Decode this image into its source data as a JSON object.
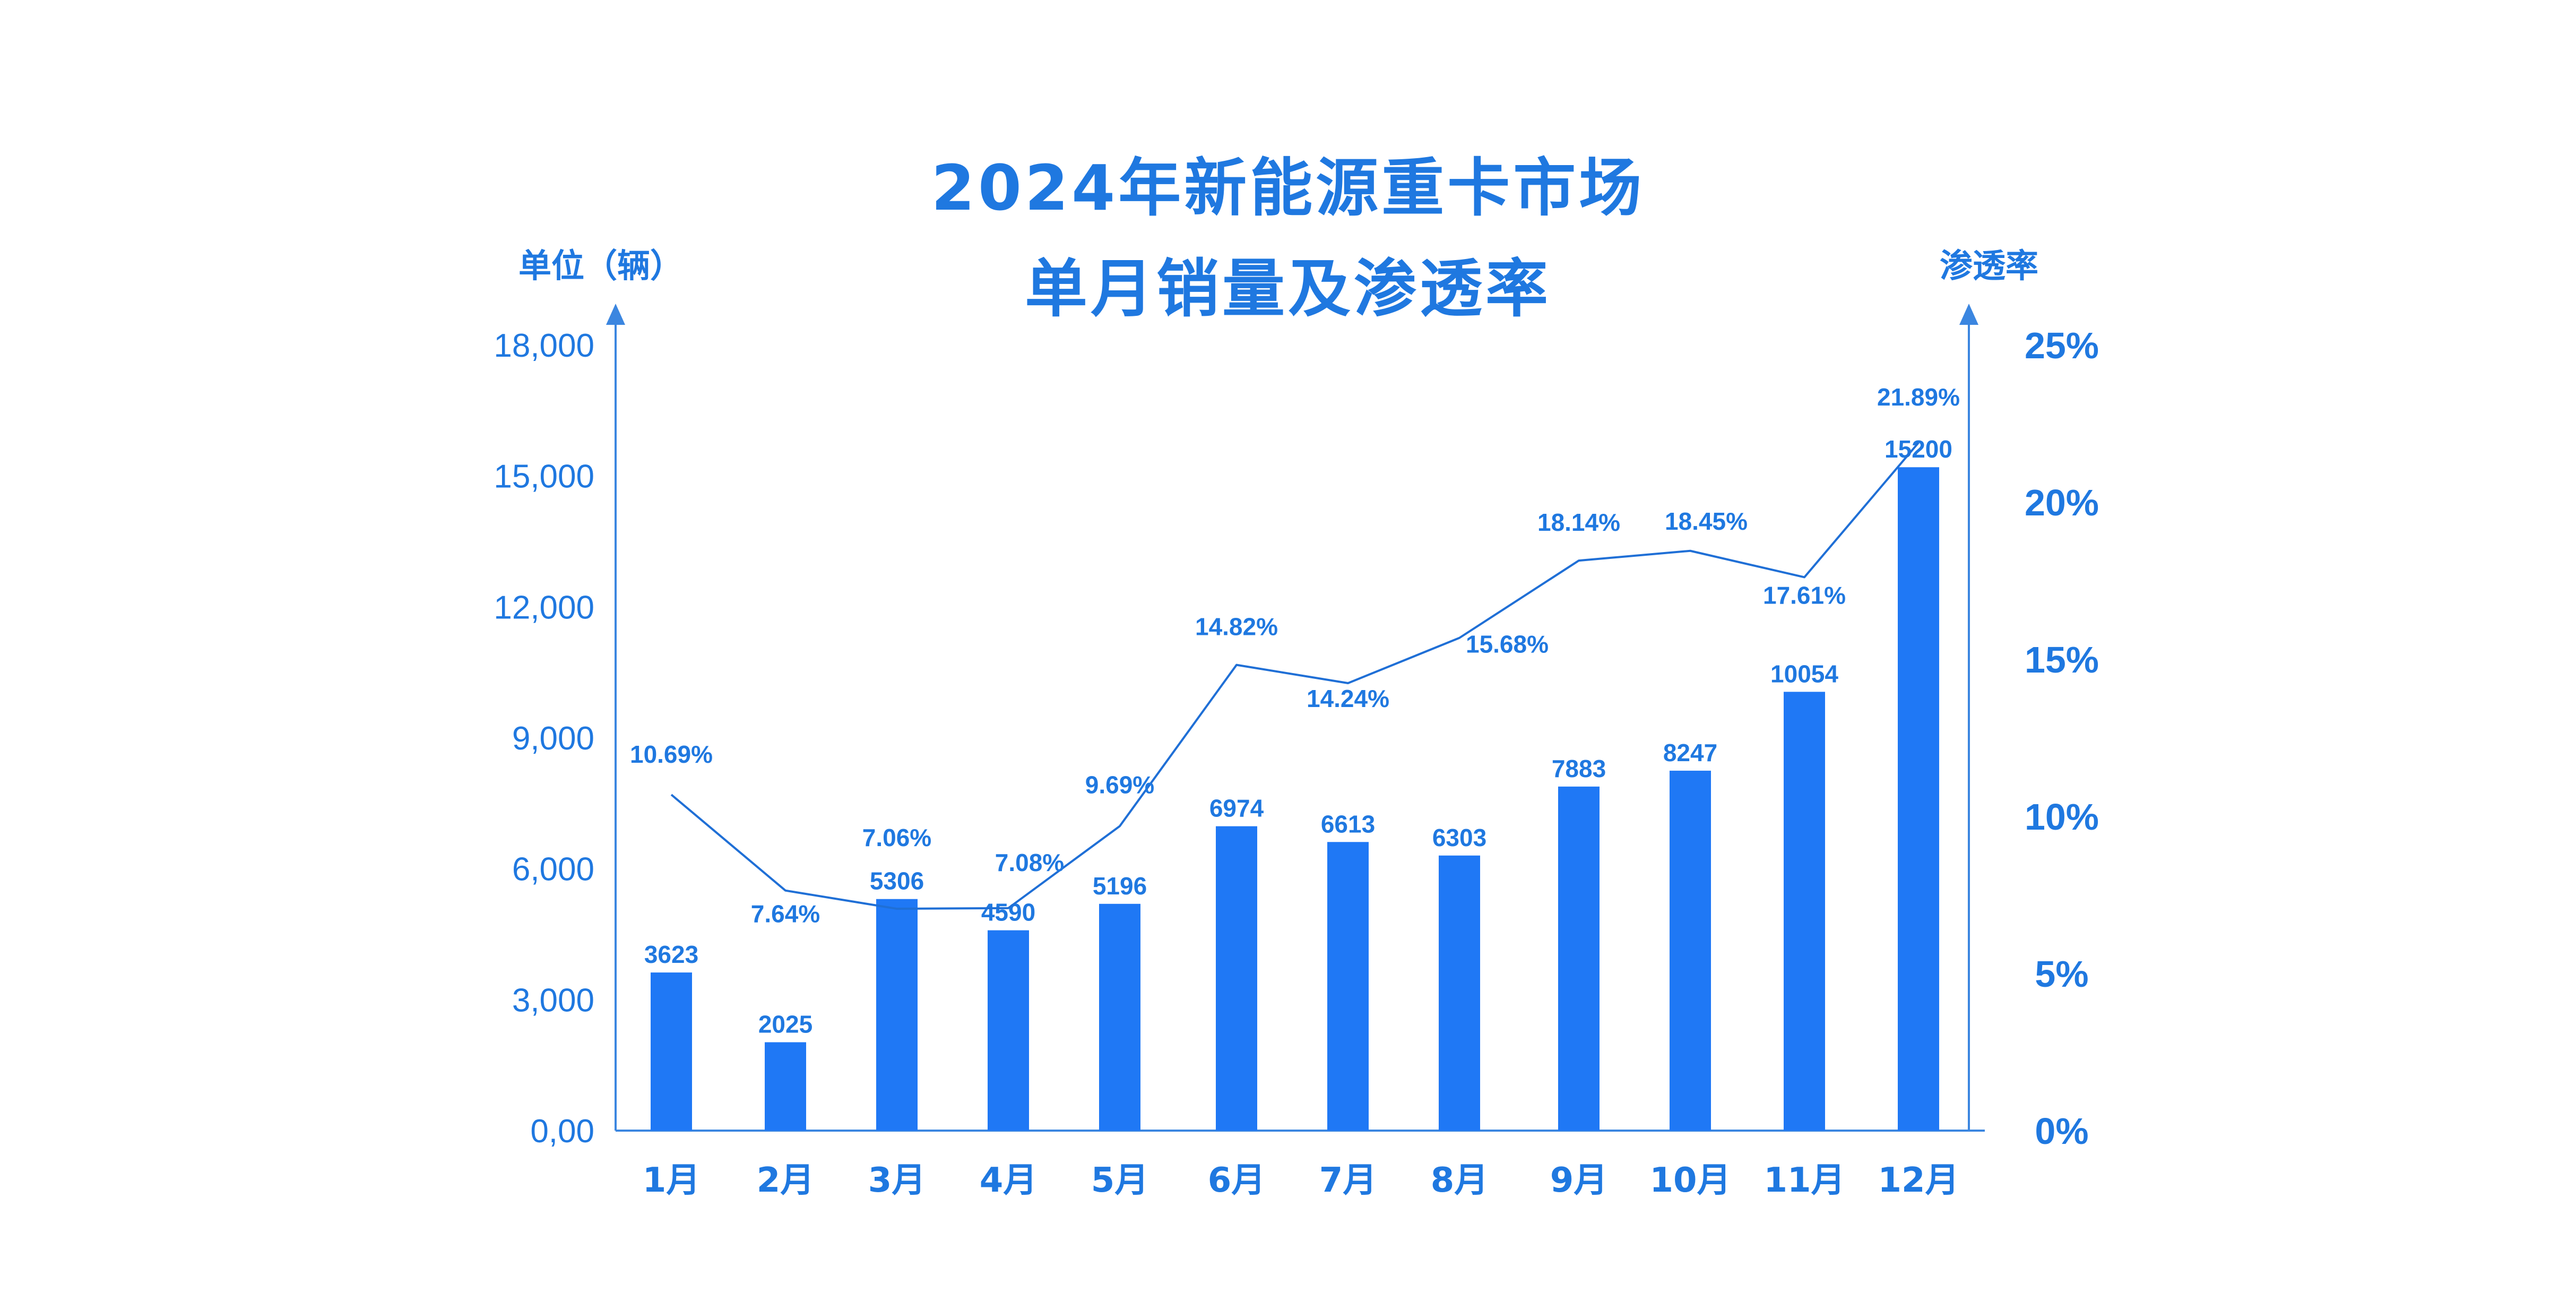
{
  "chart_data": {
    "type": "bar",
    "title_lines": [
      "2024年新能源重卡市场",
      "单月销量及渗透率"
    ],
    "y_left_label": "单位（辆）",
    "y_right_label": "渗透率",
    "ylim": [
      0,
      18000
    ],
    "y2lim": [
      0,
      25
    ],
    "y_left_ticks": [
      "0,00",
      "3,000",
      "6,000",
      "9,000",
      "12,000",
      "15,000",
      "18,000"
    ],
    "y_right_ticks": [
      "0%",
      "5%",
      "10%",
      "15%",
      "20%",
      "25%"
    ],
    "categories": [
      "1月",
      "2月",
      "3月",
      "4月",
      "5月",
      "6月",
      "7月",
      "8月",
      "9月",
      "10月",
      "11月",
      "12月"
    ],
    "series": [
      {
        "type": "bar",
        "values": [
          3623,
          2025,
          5306,
          4590,
          5196,
          6974,
          6613,
          6303,
          7883,
          8247,
          10054,
          15200
        ],
        "labels": [
          "3623",
          "2025",
          "5306",
          "4590",
          "5196",
          "6974",
          "6613",
          "6303",
          "7883",
          "8247",
          "10054",
          "15200"
        ]
      },
      {
        "type": "line",
        "axis": "right",
        "values": [
          10.69,
          7.64,
          7.06,
          7.08,
          9.69,
          14.82,
          14.24,
          15.68,
          18.14,
          18.45,
          17.61,
          21.89
        ],
        "labels": [
          "10.69%",
          "7.64%",
          "7.06%",
          "7.08%",
          "9.69%",
          "14.82%",
          "14.24%",
          "15.68%",
          "18.14%",
          "18.45%",
          "17.61%",
          "21.89%"
        ]
      }
    ],
    "grid": false,
    "colors": {
      "bar": "#1f78f5",
      "line": "#1f6fd6",
      "text": "#1f78e0",
      "axis": "#3b86e0"
    }
  }
}
